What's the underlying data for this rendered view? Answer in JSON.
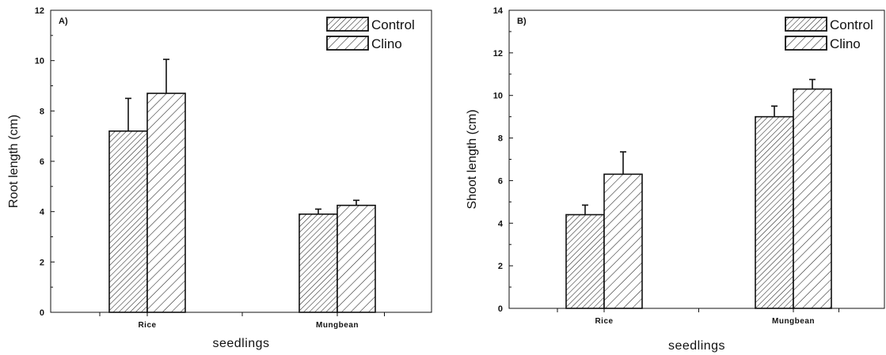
{
  "chart_data": [
    {
      "type": "bar",
      "panel_label": "A)",
      "xlabel": "seedlings",
      "ylabel": "Root length (cm)",
      "ylim": [
        0,
        12
      ],
      "yticks": [
        0,
        2,
        4,
        6,
        8,
        10,
        12
      ],
      "categories": [
        "Rice",
        "Mungbean"
      ],
      "series": [
        {
          "name": "Control",
          "values": [
            7.2,
            3.9
          ],
          "errors": [
            1.3,
            0.2
          ],
          "pattern": "dense-hatch"
        },
        {
          "name": "Clino",
          "values": [
            8.7,
            4.25
          ],
          "errors": [
            1.35,
            0.2
          ],
          "pattern": "sparse-hatch"
        }
      ],
      "legend_position": "top-right",
      "grid": false
    },
    {
      "type": "bar",
      "panel_label": "B)",
      "xlabel": "seedlings",
      "ylabel": "Shoot length (cm)",
      "ylim": [
        0,
        14
      ],
      "yticks": [
        0,
        2,
        4,
        6,
        8,
        10,
        12,
        14
      ],
      "categories": [
        "Rice",
        "Mungbean"
      ],
      "series": [
        {
          "name": "Control",
          "values": [
            4.4,
            9.0
          ],
          "errors": [
            0.45,
            0.5
          ],
          "pattern": "dense-hatch"
        },
        {
          "name": "Clino",
          "values": [
            6.3,
            10.3
          ],
          "errors": [
            1.05,
            0.45
          ],
          "pattern": "sparse-hatch"
        }
      ],
      "legend_position": "top-right",
      "grid": false
    }
  ]
}
